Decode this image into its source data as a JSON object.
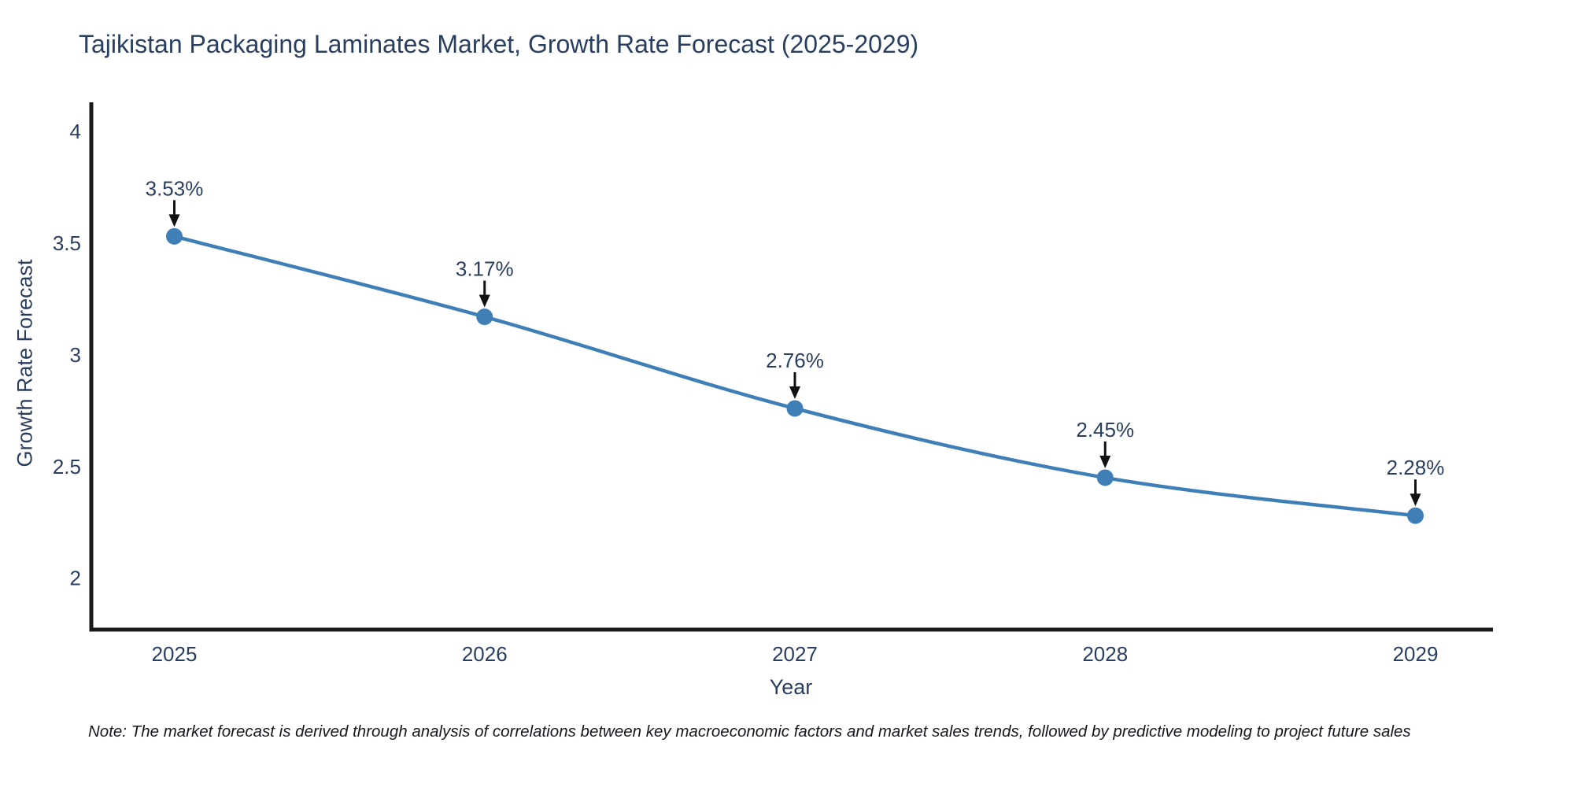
{
  "title": {
    "text": "Tajikistan Packaging Laminates Market, Growth Rate Forecast (2025-2029)",
    "color": "#2a3f5f"
  },
  "note": {
    "text": "Note: The market forecast is derived through analysis of correlations between key macroeconomic factors and market sales trends, followed by predictive modeling to project future sales"
  },
  "chart_data": {
    "type": "line",
    "title": "Tajikistan Packaging Laminates Market, Growth Rate Forecast (2025-2029)",
    "x": [
      2025,
      2026,
      2027,
      2028,
      2029
    ],
    "xticklabels": [
      "2025",
      "2026",
      "2027",
      "2028",
      "2029"
    ],
    "series": [
      {
        "name": "Growth Rate Forecast",
        "values": [
          3.53,
          3.17,
          2.76,
          2.45,
          2.28
        ]
      }
    ],
    "point_labels": [
      "3.53%",
      "3.17%",
      "2.76%",
      "2.45%",
      "2.28%"
    ],
    "xlabel": "Year",
    "ylabel": "Growth Rate Forecast",
    "ylim": [
      1.77,
      4.13
    ],
    "yticks": [
      4,
      3.5,
      3,
      2.5,
      2
    ],
    "grid": false,
    "legend": "none",
    "line_color": "#3f7fb8",
    "marker_color": "#3f7fb8",
    "axis_color": "#1a1a1a",
    "annotation_arrow_color": "#111111",
    "tick_color": "#2a3f5f"
  }
}
